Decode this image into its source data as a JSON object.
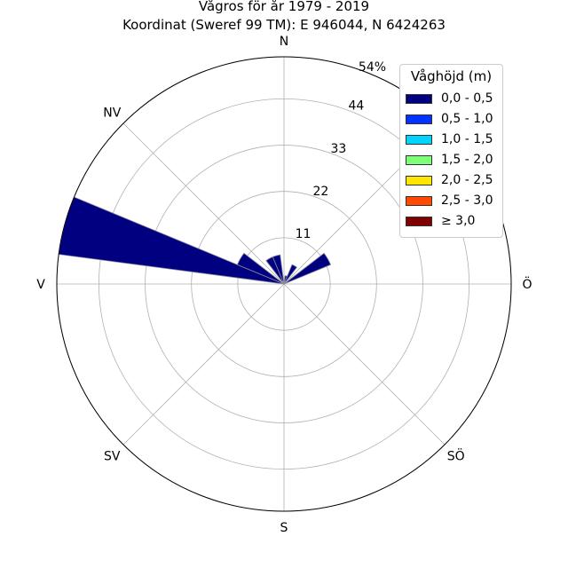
{
  "title": "Vågros för år 1979 - 2019",
  "subtitle": "Koordinat (Sweref 99 TM): E 946044, N 6424263",
  "chart_data": {
    "type": "rose",
    "radial_unit": "%",
    "radial_ticks": [
      "11",
      "22",
      "33",
      "44",
      "54%"
    ],
    "radial_tick_values": [
      11,
      22,
      33,
      44,
      54
    ],
    "rmax": 54,
    "grid": true,
    "directions": [
      "N",
      "NV",
      "V",
      "SV",
      "S",
      "SÖ",
      "Ö"
    ],
    "direction_angles": [
      0,
      315,
      270,
      225,
      180,
      135,
      90
    ],
    "legend": {
      "title": "Våghöjd (m)",
      "placement": "top-right",
      "entries": [
        {
          "label": "0,0 - 0,5",
          "color": "#000080"
        },
        {
          "label": "0,5 - 1,0",
          "color": "#0033ff"
        },
        {
          "label": "1,0 - 1,5",
          "color": "#00d4ff"
        },
        {
          "label": "1,5 - 2,0",
          "color": "#7dff7a"
        },
        {
          "label": "2,0 - 2,5",
          "color": "#ffe600"
        },
        {
          "label": "2,5 - 3,0",
          "color": "#ff4a00"
        },
        {
          "label": "≥ 3,0",
          "color": "#800000"
        }
      ]
    },
    "sectors": [
      {
        "direction_deg": 0,
        "values": [
          1
        ]
      },
      {
        "direction_deg": 15,
        "values": [
          2
        ]
      },
      {
        "direction_deg": 30,
        "values": [
          5
        ]
      },
      {
        "direction_deg": 60,
        "values": [
          12
        ]
      },
      {
        "direction_deg": 285,
        "values": [
          54
        ]
      },
      {
        "direction_deg": 300,
        "values": [
          12
        ]
      },
      {
        "direction_deg": 330,
        "values": [
          7
        ]
      },
      {
        "direction_deg": 345,
        "values": [
          7
        ]
      }
    ]
  }
}
